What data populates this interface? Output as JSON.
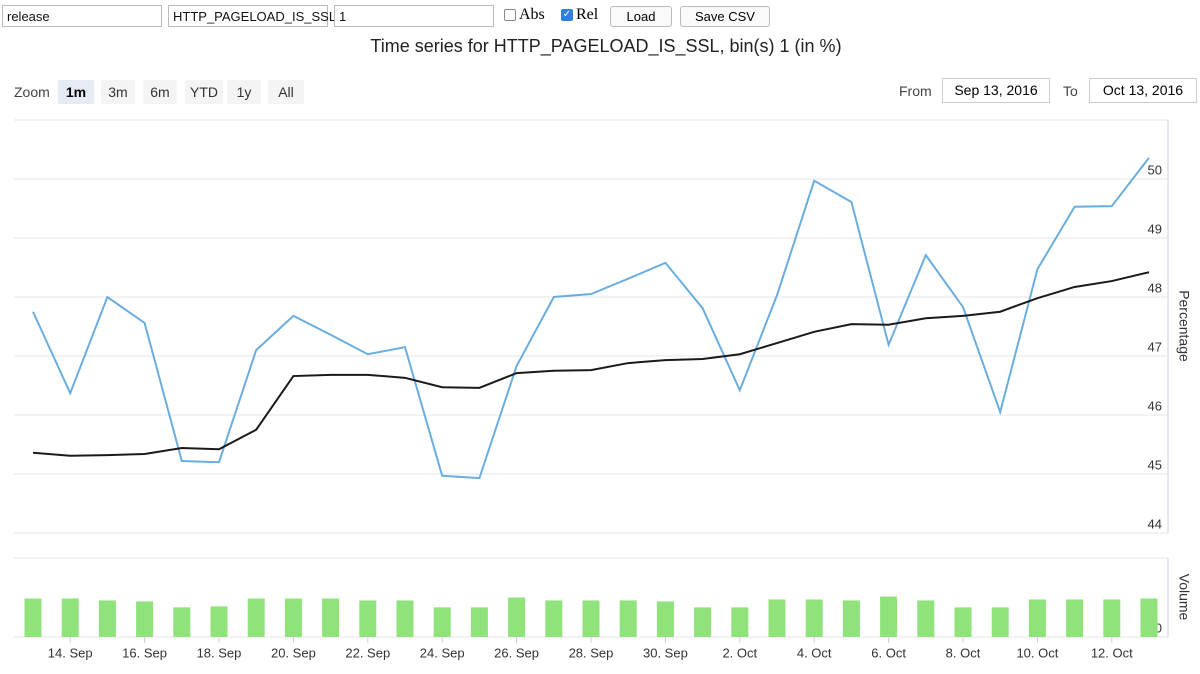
{
  "controls": {
    "fields": [
      "release",
      "HTTP_PAGELOAD_IS_SSL",
      "1"
    ],
    "checkboxes": [
      {
        "label": "Abs",
        "checked": false
      },
      {
        "label": "Rel",
        "checked": true
      }
    ],
    "buttons": [
      "Load",
      "Save CSV"
    ]
  },
  "chart_data": {
    "type": "line",
    "title": "Time series for HTTP_PAGELOAD_IS_SSL, bin(s) 1 (in %)",
    "zoom": {
      "label": "Zoom",
      "buttons": [
        "1m",
        "3m",
        "6m",
        "YTD",
        "1y",
        "All"
      ],
      "selected": 0
    },
    "range": {
      "from_label": "From",
      "from": "Sep 13, 2016",
      "to_label": "To",
      "to": "Oct 13, 2016"
    },
    "categories": [
      null,
      "14. Sep",
      null,
      "16. Sep",
      null,
      "18. Sep",
      null,
      "20. Sep",
      null,
      "22. Sep",
      null,
      "24. Sep",
      null,
      "26. Sep",
      null,
      "28. Sep",
      null,
      "30. Sep",
      null,
      "2. Oct",
      null,
      "4. Oct",
      null,
      "6. Oct",
      null,
      "8. Oct",
      null,
      "10. Oct",
      null,
      "12. Oct",
      null
    ],
    "ylabel": "Percentage",
    "ylim": [
      44,
      51
    ],
    "yticks": [
      44,
      45,
      46,
      47,
      48,
      49,
      50
    ],
    "grid": true,
    "series": [
      {
        "color": "#6aaee0",
        "values": [
          47.75,
          46.37,
          48.0,
          47.56,
          45.22,
          45.2,
          47.1,
          47.68,
          47.36,
          47.03,
          47.15,
          44.97,
          44.93,
          46.83,
          48.0,
          48.05,
          48.31,
          48.58,
          47.81,
          46.42,
          48.03,
          49.97,
          49.61,
          47.19,
          48.71,
          47.83,
          46.05,
          48.47,
          49.53,
          49.54,
          50.36
        ]
      },
      {
        "color": "#1a1a1a",
        "values": [
          45.36,
          45.31,
          45.32,
          45.34,
          45.44,
          45.42,
          45.75,
          46.66,
          46.68,
          46.68,
          46.63,
          46.47,
          46.46,
          46.71,
          46.75,
          46.76,
          46.88,
          46.93,
          46.95,
          47.03,
          47.22,
          47.41,
          47.54,
          47.53,
          47.64,
          47.68,
          47.75,
          47.98,
          48.17,
          48.27,
          48.42
        ]
      }
    ],
    "volume": {
      "label": "Volume",
      "color": "#90e27a",
      "ylim": [
        0,
        80
      ],
      "yticks": [
        0
      ],
      "values": [
        39,
        39,
        37,
        36,
        30,
        31,
        39,
        39,
        39,
        37,
        37,
        30,
        30,
        40,
        37,
        37,
        37,
        36,
        30,
        30,
        38,
        38,
        37,
        41,
        37,
        30,
        30,
        38,
        38,
        38,
        39
      ]
    }
  }
}
